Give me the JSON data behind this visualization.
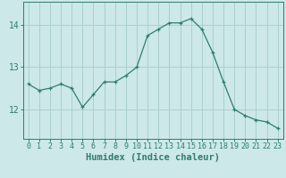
{
  "x": [
    0,
    1,
    2,
    3,
    4,
    5,
    6,
    7,
    8,
    9,
    10,
    11,
    12,
    13,
    14,
    15,
    16,
    17,
    18,
    19,
    20,
    21,
    22,
    23
  ],
  "y": [
    12.6,
    12.45,
    12.5,
    12.6,
    12.5,
    12.05,
    12.35,
    12.65,
    12.65,
    12.8,
    13.0,
    13.75,
    13.9,
    14.05,
    14.05,
    14.15,
    13.9,
    13.35,
    12.65,
    12.0,
    11.85,
    11.75,
    11.7,
    11.55
  ],
  "line_color": "#2e7d6e",
  "marker": "+",
  "marker_size": 3,
  "bg_color": "#cce8e8",
  "grid_color": "#aacfcf",
  "axis_label_color": "#2e7d6e",
  "tick_color": "#2e7d6e",
  "xlabel": "Humidex (Indice chaleur)",
  "yticks": [
    12,
    13,
    14
  ],
  "ylim": [
    11.3,
    14.55
  ],
  "xlim": [
    -0.5,
    23.5
  ],
  "xlabel_fontsize": 7.5,
  "ytick_fontsize": 7,
  "xtick_fontsize": 6
}
